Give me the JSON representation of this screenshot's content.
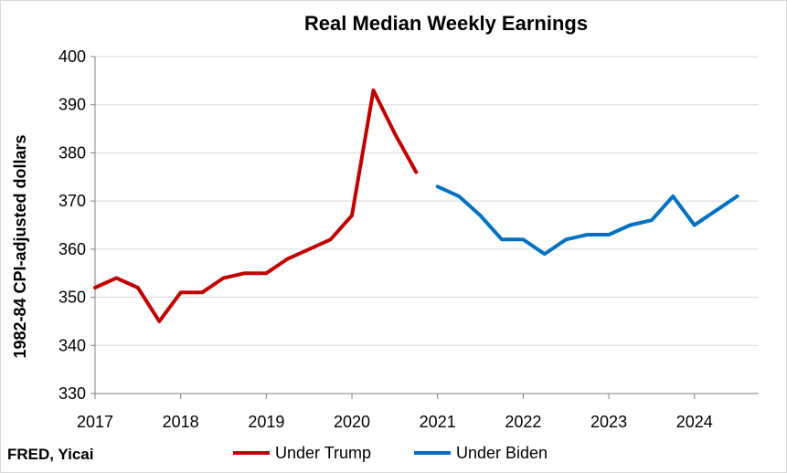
{
  "chart_data": {
    "type": "line",
    "title": "Real Median Weekly Earnings",
    "xlabel": "",
    "ylabel": "1982-84 CPI-adjusted dollars",
    "ylim": [
      330,
      400
    ],
    "yticks": [
      330,
      340,
      350,
      360,
      370,
      380,
      390,
      400
    ],
    "xlim": [
      2017,
      2024.75
    ],
    "xticks": [
      2017,
      2018,
      2019,
      2020,
      2021,
      2022,
      2023,
      2024
    ],
    "grid": true,
    "legend_position": "bottom",
    "source": "FRED, Yicai",
    "series": [
      {
        "name": "Under Trump",
        "color": "#c00000",
        "x": [
          2017.0,
          2017.25,
          2017.5,
          2017.75,
          2018.0,
          2018.25,
          2018.5,
          2018.75,
          2019.0,
          2019.25,
          2019.5,
          2019.75,
          2020.0,
          2020.25,
          2020.5,
          2020.75
        ],
        "y": [
          352,
          354,
          352,
          345,
          351,
          351,
          354,
          355,
          355,
          358,
          360,
          362,
          367,
          393,
          384,
          376
        ]
      },
      {
        "name": "Under Biden",
        "color": "#0070c0",
        "x": [
          2021.0,
          2021.25,
          2021.5,
          2021.75,
          2022.0,
          2022.25,
          2022.5,
          2022.75,
          2023.0,
          2023.25,
          2023.5,
          2023.75,
          2024.0,
          2024.25,
          2024.5
        ],
        "y": [
          373,
          371,
          367,
          362,
          362,
          359,
          362,
          363,
          363,
          365,
          366,
          371,
          365,
          368,
          371
        ]
      }
    ]
  }
}
